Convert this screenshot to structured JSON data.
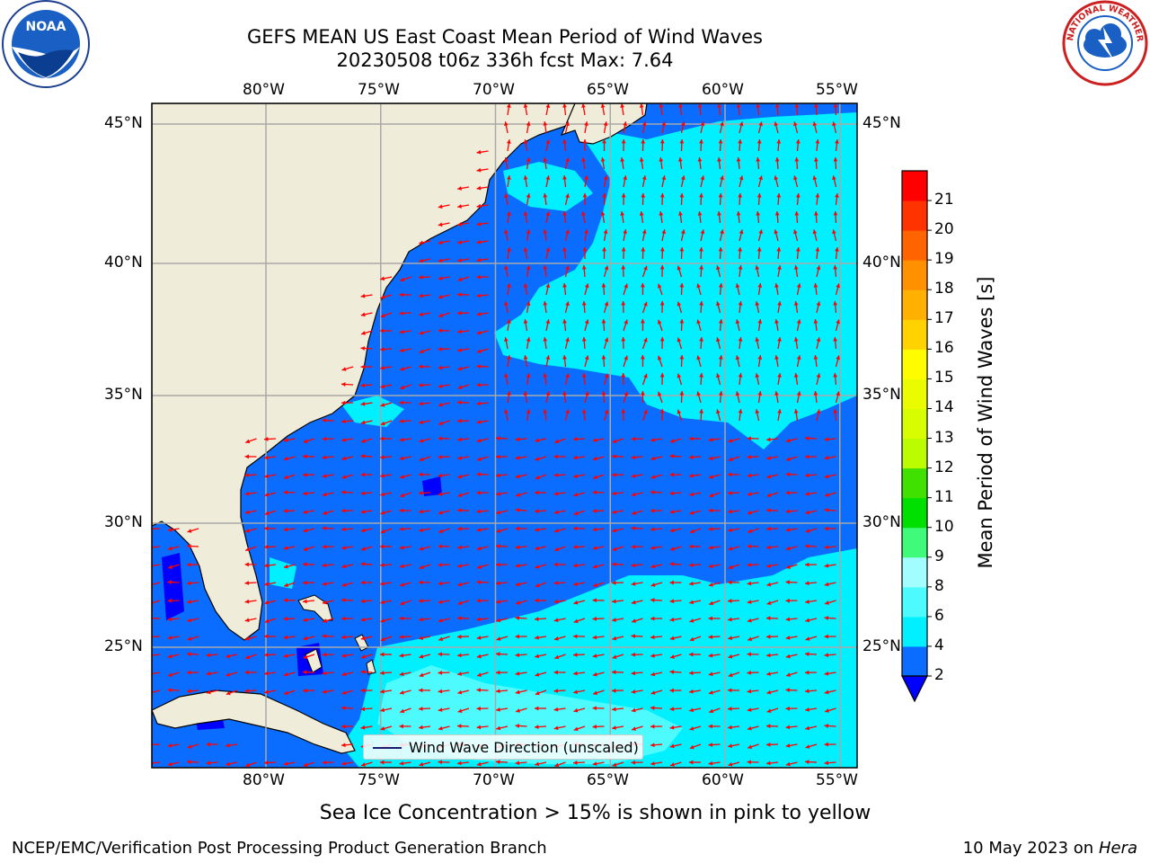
{
  "title": {
    "line1": "GEFS MEAN US East Coast Mean Period of Wind Waves",
    "line2": "20230508 t06z 336h fcst   Max: 7.64"
  },
  "map": {
    "lon_ticks": [
      "80°W",
      "75°W",
      "70°W",
      "65°W",
      "60°W",
      "55°W"
    ],
    "lat_ticks": [
      "45°N",
      "40°N",
      "35°N",
      "30°N",
      "25°N"
    ],
    "extent": {
      "lon_min": -85,
      "lon_max": -54.2,
      "lat_min": 20.5,
      "lat_max": 46
    },
    "land_color": "#efedda",
    "vector_color": "#ff0000",
    "grid": true
  },
  "legend": {
    "label": "Wind Wave Direction (unscaled)"
  },
  "colorbar": {
    "title": "Mean Period of Wind Waves [s]",
    "ticks": [
      "2",
      "4",
      "6",
      "8",
      "9",
      "10",
      "11",
      "12",
      "13",
      "14",
      "15",
      "16",
      "17",
      "18",
      "19",
      "20",
      "21"
    ],
    "colors": [
      "#0a6dff",
      "#00f0ff",
      "#4dfbff",
      "#a2fdff",
      "#40fa7a",
      "#00e000",
      "#40e000",
      "#bcfc00",
      "#d8fc00",
      "#ecfc00",
      "#fffc00",
      "#ffd200",
      "#ffb000",
      "#ff9000",
      "#ff6400",
      "#ff3300",
      "#ff0000"
    ],
    "under_color": "#0000ff"
  },
  "notes": {
    "sea_ice": "Sea Ice Concentration > 15% is shown in pink to yellow",
    "credit": "NCEP/EMC/Verification Post Processing Product Generation Branch",
    "date": "10 May 2023 on",
    "host": "Hera"
  },
  "logos": {
    "noaa_text": "NOAA",
    "nws_text": "NATIONAL WEATHER SERVICE"
  }
}
